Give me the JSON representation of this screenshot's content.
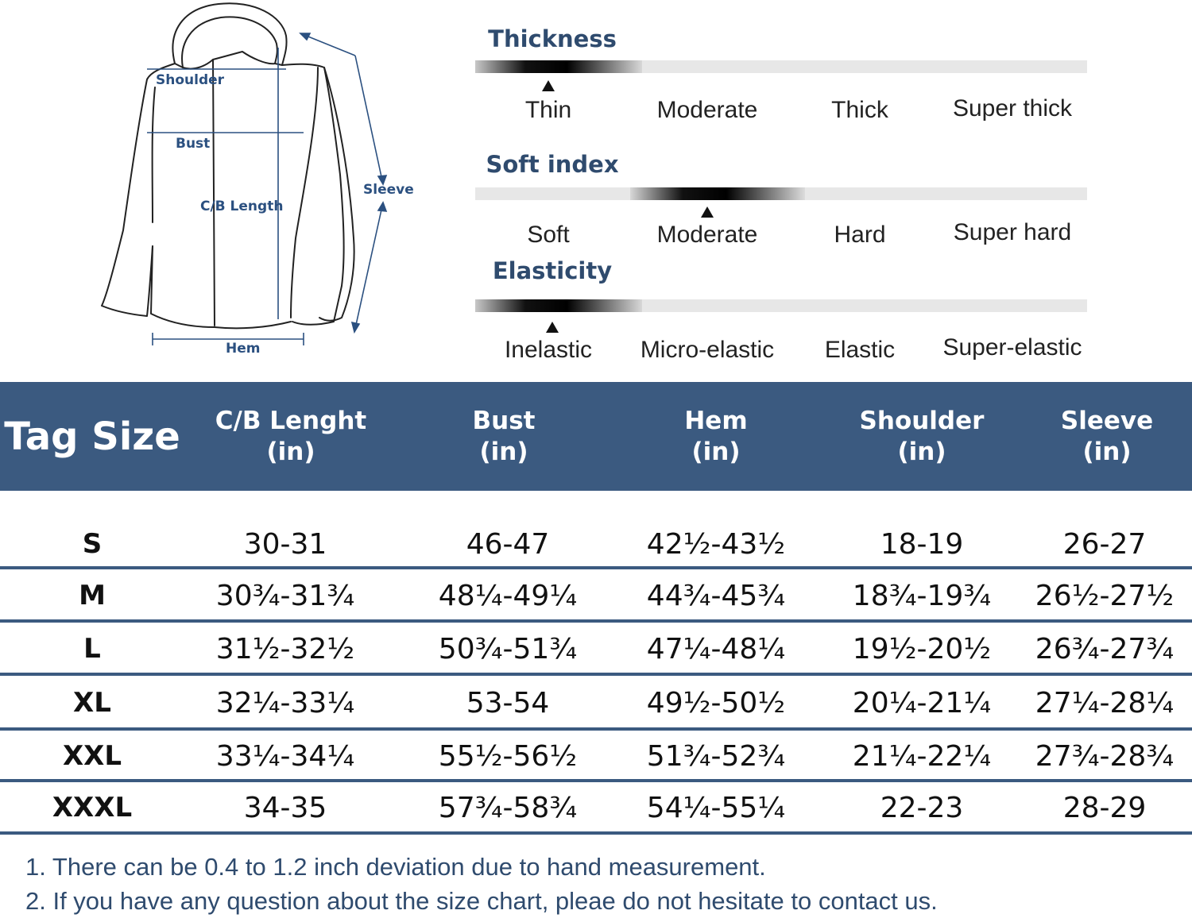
{
  "diagram": {
    "labels": {
      "shoulder": "Shoulder",
      "bust": "Bust",
      "cb_length": "C/B Length",
      "sleeve": "Sleeve",
      "hem": "Hem"
    },
    "line_color": "#2b5080"
  },
  "scales": [
    {
      "title": "Thickness",
      "options": [
        "Thin",
        "Moderate",
        "Thick",
        "Super thick"
      ],
      "selected_index": 0
    },
    {
      "title": "Soft index",
      "options": [
        "Soft",
        "Moderate",
        "Hard",
        "Super hard"
      ],
      "selected_index": 1
    },
    {
      "title": "Elasticity",
      "options": [
        "Inelastic",
        "Micro-elastic",
        "Elastic",
        "Super-elastic"
      ],
      "selected_index": 0
    }
  ],
  "table": {
    "header_color": "#3b5a80",
    "columns": [
      {
        "name": "Tag Size",
        "unit": ""
      },
      {
        "name": "C/B Lenght",
        "unit": "(in)"
      },
      {
        "name": "Bust",
        "unit": "(in)"
      },
      {
        "name": "Hem",
        "unit": "(in)"
      },
      {
        "name": "Shoulder",
        "unit": "(in)"
      },
      {
        "name": "Sleeve",
        "unit": "(in)"
      }
    ],
    "rows": [
      [
        "S",
        "30-31",
        "46-47",
        "42½-43½",
        "18-19",
        "26-27"
      ],
      [
        "M",
        "30¾-31¾",
        "48¼-49¼",
        "44¾-45¾",
        "18¾-19¾",
        "26½-27½"
      ],
      [
        "L",
        "31½-32½",
        "50¾-51¾",
        "47¼-48¼",
        "19½-20½",
        "26¾-27¾"
      ],
      [
        "XL",
        "32¼-33¼",
        "53-54",
        "49½-50½",
        "20¼-21¼",
        "27¼-28¼"
      ],
      [
        "XXL",
        "33¼-34¼",
        "55½-56½",
        "51¾-52¾",
        "21¼-22¼",
        "27¾-28¾"
      ],
      [
        "XXXL",
        "34-35",
        "57¾-58¾",
        "54¼-55¼",
        "22-23",
        "28-29"
      ]
    ]
  },
  "notes": [
    "1. There can be 0.4 to 1.2 inch deviation due to hand measurement.",
    "2. If you have any question about the size chart, pleae do not hesitate to contact us."
  ]
}
